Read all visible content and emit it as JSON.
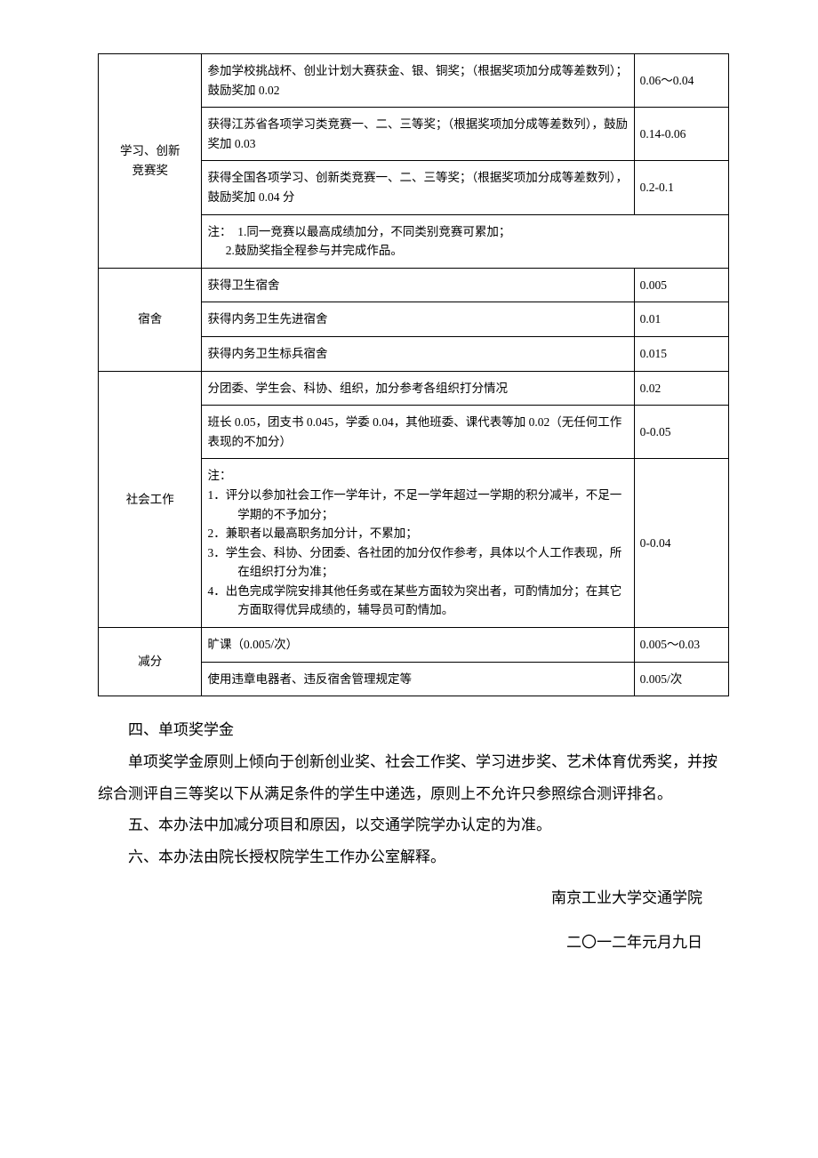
{
  "table": {
    "rows": [
      {
        "cat": "学习、创新\n竞赛奖",
        "rowspan": 4,
        "cells": [
          {
            "desc": "参加学校挑战杯、创业计划大赛获金、银、铜奖；（根据奖项加分成等差数列）；鼓励奖加 0.02",
            "score": "0.06～0.04"
          },
          {
            "desc": "获得江苏省各项学习类竞赛一、二、三等奖；（根据奖项加分成等差数列），鼓励奖加 0.03",
            "score": "0.14-0.06"
          },
          {
            "desc": "获得全国各项学习、创新类竞赛一、二、三等奖；（根据奖项加分成等差数列），鼓励奖加 0.04 分",
            "score": "0.2-0.1"
          },
          {
            "note": true,
            "lines": [
              "注：  1.同一竞赛以最高成绩加分，不同类别竞赛可累加；",
              "      2.鼓励奖指全程参与并完成作品。"
            ],
            "colspan": 2
          }
        ]
      },
      {
        "cat": "宿舍",
        "rowspan": 3,
        "cells": [
          {
            "desc": "获得卫生宿舍",
            "score": "0.005"
          },
          {
            "desc": "获得内务卫生先进宿舍",
            "score": "0.01"
          },
          {
            "desc": "获得内务卫生标兵宿舍",
            "score": "0.015"
          }
        ]
      },
      {
        "cat": "社会工作",
        "rowspan": 3,
        "cells": [
          {
            "desc": "分团委、学生会、科协、组织，加分参考各组织打分情况",
            "score": "0.02"
          },
          {
            "desc": "班长 0.05，团支书 0.045，学委 0.04，其他班委、课代表等加 0.02（无任何工作表现的不加分）",
            "score": "0-0.05"
          },
          {
            "note": true,
            "score": "0-0.04",
            "lines": [
              "注：",
              "1．评分以参加社会工作一学年计，不足一学年超过一学期的积分减半，不足一学期的不予加分；",
              "2．兼职者以最高职务加分计，不累加；",
              "3．学生会、科协、分团委、各社团的加分仅作参考，具体以个人工作表现，所在组织打分为准；",
              "4．出色完成学院安排其他任务或在某些方面较为突出者，可酌情加分；在其它方面取得优异成绩的，辅导员可酌情加。"
            ]
          }
        ]
      },
      {
        "cat": "减分",
        "rowspan": 2,
        "cells": [
          {
            "desc": "旷课（0.005/次）",
            "score": "0.005～0.03"
          },
          {
            "desc": "使用违章电器者、违反宿舍管理规定等",
            "score": "0.005/次"
          }
        ]
      }
    ]
  },
  "body": {
    "p1": "四、单项奖学金",
    "p2": "单项奖学金原则上倾向于创新创业奖、社会工作奖、学习进步奖、艺术体育优秀奖，并按综合测评自三等奖以下从满足条件的学生中递选，原则上不允许只参照综合测评排名。",
    "p3": "五、本办法中加减分项目和原因，以交通学院学办认定的为准。",
    "p4": "六、本办法由院长授权院学生工作办公室解释。"
  },
  "signature": {
    "org": "南京工业大学交通学院",
    "date": "二〇一二年元月九日"
  }
}
